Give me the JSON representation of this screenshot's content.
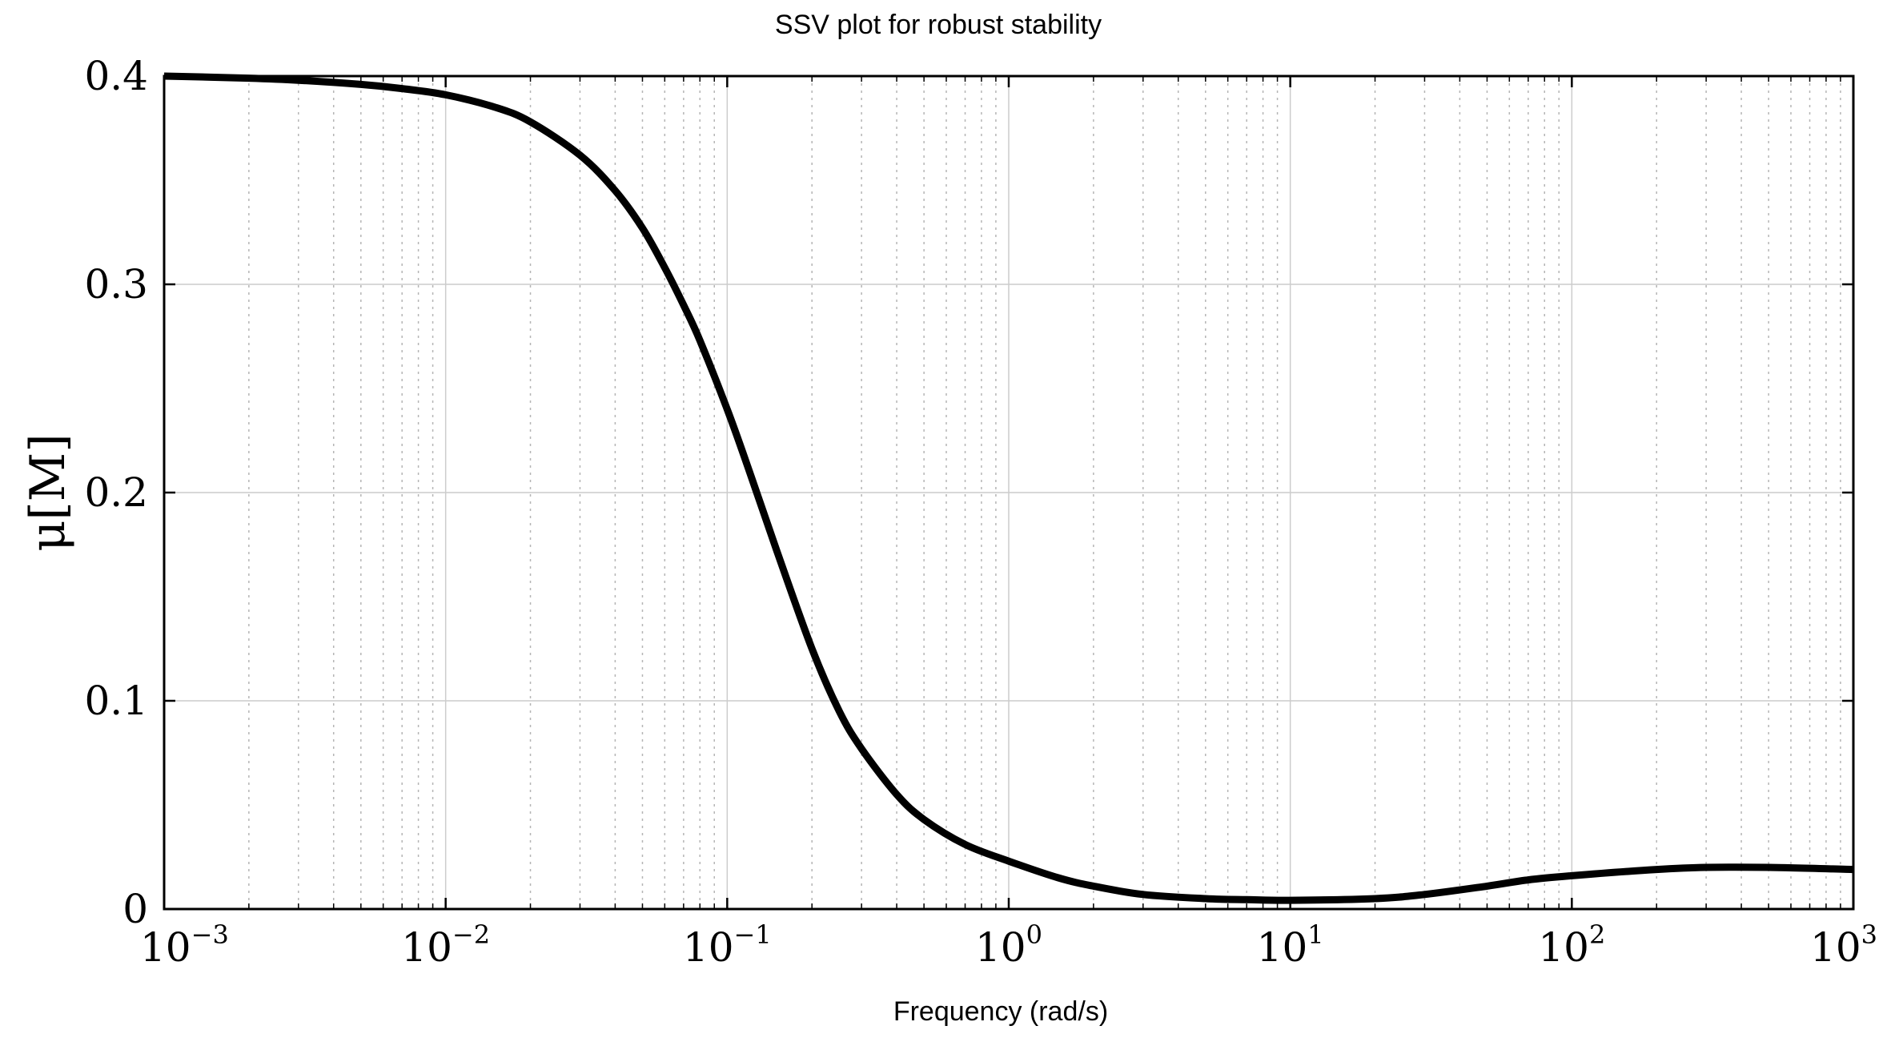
{
  "chart_data": {
    "type": "line",
    "title": "SSV plot for robust stability",
    "xlabel": "Frequency  (rad/s)",
    "ylabel": "μ[M]",
    "xscale": "log",
    "xlim": [
      0.001,
      1000
    ],
    "ylim": [
      0,
      0.4
    ],
    "grid": true,
    "x_ticks": [
      {
        "base": "10",
        "exp": "−3",
        "value": 0.001
      },
      {
        "base": "10",
        "exp": "−2",
        "value": 0.01
      },
      {
        "base": "10",
        "exp": "−1",
        "value": 0.1
      },
      {
        "base": "10",
        "exp": "0",
        "value": 1
      },
      {
        "base": "10",
        "exp": "1",
        "value": 10
      },
      {
        "base": "10",
        "exp": "2",
        "value": 100
      },
      {
        "base": "10",
        "exp": "3",
        "value": 1000
      }
    ],
    "y_ticks": [
      {
        "label": "0",
        "value": 0
      },
      {
        "label": "0.1",
        "value": 0.1
      },
      {
        "label": "0.2",
        "value": 0.2
      },
      {
        "label": "0.3",
        "value": 0.3
      },
      {
        "label": "0.4",
        "value": 0.4
      }
    ],
    "series": [
      {
        "name": "mu",
        "color": "#000000",
        "x": [
          0.001,
          0.002,
          0.003,
          0.005,
          0.007,
          0.01,
          0.015,
          0.02,
          0.03,
          0.04,
          0.05,
          0.06,
          0.07,
          0.08,
          0.1,
          0.12,
          0.15,
          0.2,
          0.25,
          0.3,
          0.4,
          0.5,
          0.7,
          1,
          1.5,
          2,
          3,
          5,
          7,
          10,
          20,
          30,
          50,
          70,
          100,
          200,
          300,
          500,
          1000
        ],
        "y": [
          0.4,
          0.399,
          0.398,
          0.396,
          0.394,
          0.391,
          0.385,
          0.378,
          0.362,
          0.345,
          0.327,
          0.308,
          0.29,
          0.273,
          0.24,
          0.21,
          0.172,
          0.125,
          0.095,
          0.077,
          0.055,
          0.043,
          0.031,
          0.023,
          0.015,
          0.011,
          0.007,
          0.005,
          0.0045,
          0.0042,
          0.005,
          0.007,
          0.011,
          0.014,
          0.016,
          0.019,
          0.02,
          0.02,
          0.019
        ]
      }
    ]
  }
}
